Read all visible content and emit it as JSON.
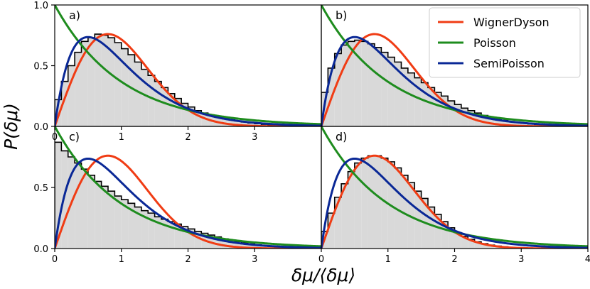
{
  "figure": {
    "xlabel": "δμ/⟨δμ⟩",
    "ylabel": "P(δμ)"
  },
  "legend": {
    "items": [
      {
        "name": "WignerDyson",
        "color": "#f03c14"
      },
      {
        "name": "Poisson",
        "color": "#1e8c1e"
      },
      {
        "name": "SemiPoisson",
        "color": "#0a2896"
      }
    ],
    "placement": "upper-right"
  },
  "chart_data": [
    {
      "type": "line",
      "panel": "a)",
      "xlim": [
        0,
        4
      ],
      "ylim": [
        0,
        1.0
      ],
      "x_ticks": [
        "0",
        "1",
        "2",
        "3"
      ],
      "y_ticks": [
        "0.0",
        "0.5",
        "1.0"
      ],
      "series": [
        {
          "name": "WignerDyson",
          "formula": "(pi/2) x exp(-pi x^2/4)",
          "color": "#f03c14"
        },
        {
          "name": "Poisson",
          "formula": "exp(-x)",
          "color": "#1e8c1e"
        },
        {
          "name": "SemiPoisson",
          "formula": "4 x exp(-2x)",
          "color": "#0a2896"
        }
      ],
      "histogram": {
        "bin_width": 0.1,
        "values": [
          0.22,
          0.37,
          0.5,
          0.61,
          0.7,
          0.73,
          0.76,
          0.75,
          0.73,
          0.69,
          0.64,
          0.59,
          0.53,
          0.47,
          0.42,
          0.37,
          0.32,
          0.27,
          0.23,
          0.19,
          0.16,
          0.13,
          0.11,
          0.095,
          0.08,
          0.065,
          0.055,
          0.045,
          0.036,
          0.028,
          0.022,
          0.017,
          0.013,
          0.01,
          0.008,
          0.006,
          0.004,
          0.003,
          0.002,
          0.001
        ]
      }
    },
    {
      "type": "line",
      "panel": "b)",
      "xlim": [
        0,
        4
      ],
      "ylim": [
        0,
        1.0
      ],
      "x_ticks": [],
      "y_ticks": [],
      "series": [
        {
          "name": "WignerDyson",
          "formula": "(pi/2) x exp(-pi x^2/4)",
          "color": "#f03c14"
        },
        {
          "name": "Poisson",
          "formula": "exp(-x)",
          "color": "#1e8c1e"
        },
        {
          "name": "SemiPoisson",
          "formula": "4 x exp(-2x)",
          "color": "#0a2896"
        }
      ],
      "histogram": {
        "bin_width": 0.1,
        "values": [
          0.28,
          0.48,
          0.6,
          0.67,
          0.7,
          0.71,
          0.7,
          0.68,
          0.65,
          0.61,
          0.57,
          0.53,
          0.48,
          0.44,
          0.4,
          0.36,
          0.32,
          0.28,
          0.25,
          0.21,
          0.18,
          0.15,
          0.13,
          0.11,
          0.09,
          0.075,
          0.062,
          0.05,
          0.04,
          0.032,
          0.025,
          0.02,
          0.016,
          0.012,
          0.009,
          0.007,
          0.005,
          0.004,
          0.003,
          0.002
        ]
      }
    },
    {
      "type": "line",
      "panel": "c)",
      "xlim": [
        0,
        4
      ],
      "ylim": [
        0,
        1.0
      ],
      "x_ticks": [
        "0",
        "1",
        "2",
        "3"
      ],
      "y_ticks": [
        "0.0",
        "0.5"
      ],
      "series": [
        {
          "name": "WignerDyson",
          "formula": "(pi/2) x exp(-pi x^2/4)",
          "color": "#f03c14"
        },
        {
          "name": "Poisson",
          "formula": "exp(-x)",
          "color": "#1e8c1e"
        },
        {
          "name": "SemiPoisson",
          "formula": "4 x exp(-2x)",
          "color": "#0a2896"
        }
      ],
      "histogram": {
        "bin_width": 0.1,
        "values": [
          0.87,
          0.8,
          0.75,
          0.7,
          0.65,
          0.6,
          0.55,
          0.51,
          0.47,
          0.43,
          0.4,
          0.37,
          0.34,
          0.31,
          0.29,
          0.26,
          0.24,
          0.22,
          0.2,
          0.18,
          0.16,
          0.14,
          0.125,
          0.11,
          0.095,
          0.08,
          0.068,
          0.057,
          0.047,
          0.038,
          0.03,
          0.024,
          0.018,
          0.014,
          0.01,
          0.008,
          0.006,
          0.004,
          0.003,
          0.002
        ]
      }
    },
    {
      "type": "line",
      "panel": "d)",
      "xlim": [
        0,
        4
      ],
      "ylim": [
        0,
        1.0
      ],
      "x_ticks": [
        "0",
        "1",
        "2",
        "3",
        "4"
      ],
      "y_ticks": [],
      "series": [
        {
          "name": "WignerDyson",
          "formula": "(pi/2) x exp(-pi x^2/4)",
          "color": "#f03c14"
        },
        {
          "name": "Poisson",
          "formula": "exp(-x)",
          "color": "#1e8c1e"
        },
        {
          "name": "SemiPoisson",
          "formula": "4 x exp(-2x)",
          "color": "#0a2896"
        }
      ],
      "histogram": {
        "bin_width": 0.1,
        "values": [
          0.14,
          0.29,
          0.42,
          0.53,
          0.63,
          0.7,
          0.74,
          0.76,
          0.76,
          0.74,
          0.71,
          0.66,
          0.6,
          0.54,
          0.47,
          0.41,
          0.34,
          0.28,
          0.22,
          0.17,
          0.13,
          0.1,
          0.075,
          0.055,
          0.04,
          0.028,
          0.02,
          0.014,
          0.009,
          0.006,
          0.004,
          0.003,
          0.002,
          0.001,
          0.001,
          0,
          0,
          0,
          0,
          0
        ]
      }
    }
  ]
}
